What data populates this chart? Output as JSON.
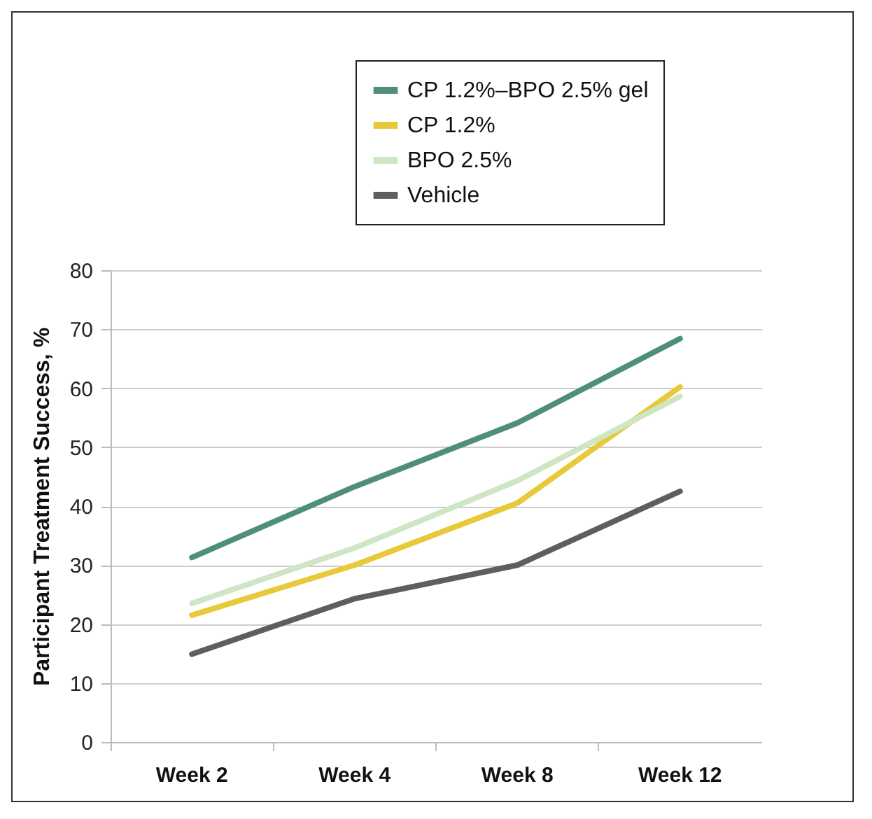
{
  "chart_data": {
    "type": "line",
    "ylabel": "Participant Treatment Success, %",
    "categories": [
      "Week 2",
      "Week 4",
      "Week 8",
      "Week 12"
    ],
    "series": [
      {
        "name": "CP 1.2%–BPO 2.5% gel",
        "color": "#4e8f78",
        "values": [
          31.3,
          43.3,
          54.1,
          68.4
        ]
      },
      {
        "name": "CP 1.2%",
        "color": "#e8c93a",
        "values": [
          21.5,
          30,
          40.5,
          60.2
        ]
      },
      {
        "name": "BPO 2.5%",
        "color": "#cfe6c4",
        "values": [
          23.5,
          32.9,
          44.3,
          58.6
        ]
      },
      {
        "name": "Vehicle",
        "color": "#5d5d62",
        "values": [
          14.9,
          24.3,
          30,
          42.5
        ]
      }
    ],
    "ylim": [
      0,
      80
    ],
    "yticks": [
      0,
      10,
      20,
      30,
      40,
      50,
      60,
      70,
      80
    ],
    "grid": "y",
    "legend": "top right",
    "marker": "none",
    "line_style": "solid"
  }
}
